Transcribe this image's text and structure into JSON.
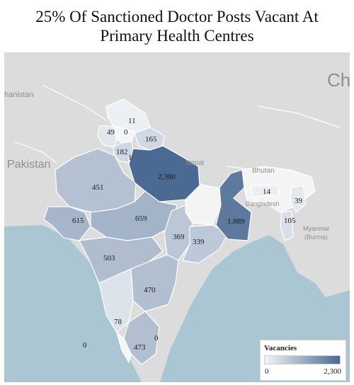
{
  "title_line1": "25% Of Sanctioned Doctor Posts Vacant At",
  "title_line2": "Primary Health Centres",
  "map_labels": {
    "afghanistan": "hanistan",
    "pakistan": "Pakistan",
    "nepal": "Nepal",
    "bhutan": "Bhutan",
    "bangladesh": "Bangladesh",
    "myanmar_line1": "Myanmar",
    "myanmar_line2": "(Burma)",
    "china": "Ch"
  },
  "legend": {
    "title": "Vacancies",
    "min_label": "0",
    "max_label": "2,300",
    "min_color": "#f3f5f8",
    "max_color": "#4a6a93"
  },
  "states": [
    {
      "id": "jammu-kashmir",
      "label": "11",
      "value": 11
    },
    {
      "id": "punjab",
      "label": "49",
      "value": 49
    },
    {
      "id": "himachal-pradesh",
      "label": "0",
      "value": 0
    },
    {
      "id": "uttarakhand",
      "label": "165",
      "value": 165
    },
    {
      "id": "haryana",
      "label": "182",
      "value": 182
    },
    {
      "id": "delhi",
      "label": "1",
      "value": 1
    },
    {
      "id": "rajasthan",
      "label": "451",
      "value": 451
    },
    {
      "id": "uttar-pradesh",
      "label": "2,300",
      "value": 2300
    },
    {
      "id": "gujarat",
      "label": "615",
      "value": 615
    },
    {
      "id": "madhya-pradesh",
      "label": "659",
      "value": 659
    },
    {
      "id": "chhattisgarh",
      "label": "369",
      "value": 369
    },
    {
      "id": "odisha",
      "label": "339",
      "value": 339
    },
    {
      "id": "west-bengal",
      "label": "1,889",
      "value": 1889
    },
    {
      "id": "maharashtra",
      "label": "503",
      "value": 503
    },
    {
      "id": "telangana",
      "label": "470",
      "value": 470
    },
    {
      "id": "karnataka",
      "label": "78",
      "value": 78
    },
    {
      "id": "tamil-nadu",
      "label": "473",
      "value": 473
    },
    {
      "id": "kerala",
      "label": "0",
      "value": 0
    },
    {
      "id": "lakshadweep",
      "label": "0",
      "value": 0
    },
    {
      "id": "meghalaya",
      "label": "14",
      "value": 14
    },
    {
      "id": "manipur",
      "label": "39",
      "value": 39
    },
    {
      "id": "mizoram",
      "label": "105",
      "value": 105
    }
  ]
}
